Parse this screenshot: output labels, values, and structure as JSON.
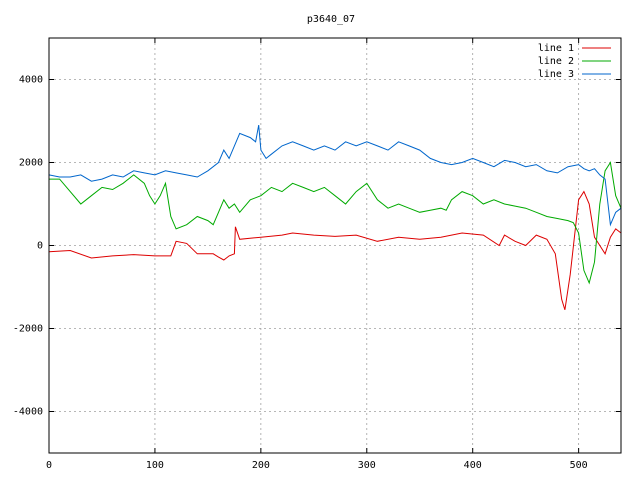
{
  "chart_data": {
    "type": "line",
    "title": "p3640_07",
    "xlabel": "",
    "ylabel": "",
    "xlim": [
      0,
      540
    ],
    "ylim": [
      -5000,
      5000
    ],
    "x_ticks": [
      "0",
      "100",
      "200",
      "300",
      "400",
      "500"
    ],
    "y_ticks": [
      "-4000",
      "-2000",
      "0",
      "2000",
      "4000"
    ],
    "x_tick_values": [
      0,
      100,
      200,
      300,
      400,
      500
    ],
    "y_tick_values": [
      -4000,
      -2000,
      0,
      2000,
      4000
    ],
    "grid": true,
    "legend_position": "top-right",
    "series": [
      {
        "name": "line 1",
        "color": "#dd0000",
        "x": [
          0,
          20,
          40,
          60,
          80,
          100,
          115,
          120,
          130,
          140,
          155,
          160,
          165,
          170,
          175,
          176,
          180,
          200,
          220,
          230,
          250,
          270,
          290,
          310,
          330,
          350,
          370,
          390,
          410,
          425,
          430,
          440,
          450,
          460,
          470,
          478,
          484,
          487,
          492,
          500,
          505,
          510,
          515,
          520,
          525,
          530,
          535,
          540
        ],
        "y": [
          -150,
          -120,
          -300,
          -250,
          -220,
          -250,
          -250,
          100,
          50,
          -200,
          -200,
          -280,
          -350,
          -250,
          -200,
          450,
          150,
          200,
          250,
          300,
          250,
          220,
          250,
          100,
          200,
          150,
          200,
          300,
          250,
          0,
          250,
          100,
          0,
          250,
          150,
          -200,
          -1300,
          -1550,
          -700,
          1100,
          1300,
          1000,
          200,
          0,
          -200,
          200,
          400,
          300
        ]
      },
      {
        "name": "line 2",
        "color": "#00aa00",
        "x": [
          0,
          10,
          20,
          30,
          40,
          50,
          60,
          70,
          80,
          90,
          95,
          100,
          105,
          110,
          115,
          120,
          130,
          140,
          150,
          155,
          160,
          165,
          170,
          175,
          180,
          190,
          200,
          210,
          220,
          230,
          240,
          250,
          260,
          270,
          280,
          290,
          300,
          310,
          320,
          330,
          340,
          350,
          360,
          370,
          375,
          380,
          390,
          400,
          410,
          420,
          430,
          440,
          450,
          460,
          470,
          480,
          490,
          495,
          500,
          505,
          510,
          515,
          520,
          525,
          530,
          535,
          540
        ],
        "y": [
          1600,
          1600,
          1300,
          1000,
          1200,
          1400,
          1350,
          1500,
          1700,
          1500,
          1200,
          1000,
          1200,
          1500,
          700,
          400,
          500,
          700,
          600,
          500,
          800,
          1100,
          900,
          1000,
          800,
          1100,
          1200,
          1400,
          1300,
          1500,
          1400,
          1300,
          1400,
          1200,
          1000,
          1300,
          1500,
          1100,
          900,
          1000,
          900,
          800,
          850,
          900,
          850,
          1100,
          1300,
          1200,
          1000,
          1100,
          1000,
          950,
          900,
          800,
          700,
          650,
          600,
          550,
          300,
          -600,
          -900,
          -400,
          1000,
          1800,
          2000,
          1200,
          900
        ]
      },
      {
        "name": "line 3",
        "color": "#0066cc",
        "x": [
          0,
          10,
          20,
          30,
          40,
          50,
          60,
          70,
          80,
          90,
          100,
          110,
          120,
          130,
          140,
          150,
          160,
          165,
          170,
          175,
          180,
          190,
          195,
          198,
          200,
          205,
          210,
          220,
          230,
          240,
          250,
          260,
          270,
          280,
          290,
          300,
          310,
          320,
          330,
          340,
          350,
          360,
          370,
          380,
          390,
          400,
          410,
          420,
          430,
          440,
          450,
          460,
          470,
          480,
          490,
          500,
          505,
          510,
          515,
          520,
          525,
          530,
          535,
          540
        ],
        "y": [
          1700,
          1650,
          1650,
          1700,
          1550,
          1600,
          1700,
          1650,
          1800,
          1750,
          1700,
          1800,
          1750,
          1700,
          1650,
          1800,
          2000,
          2300,
          2100,
          2400,
          2700,
          2600,
          2500,
          2900,
          2300,
          2100,
          2200,
          2400,
          2500,
          2400,
          2300,
          2400,
          2300,
          2500,
          2400,
          2500,
          2400,
          2300,
          2500,
          2400,
          2300,
          2100,
          2000,
          1950,
          2000,
          2100,
          2000,
          1900,
          2050,
          2000,
          1900,
          1950,
          1800,
          1750,
          1900,
          1950,
          1850,
          1800,
          1850,
          1700,
          1600,
          500,
          800,
          900
        ]
      }
    ]
  }
}
